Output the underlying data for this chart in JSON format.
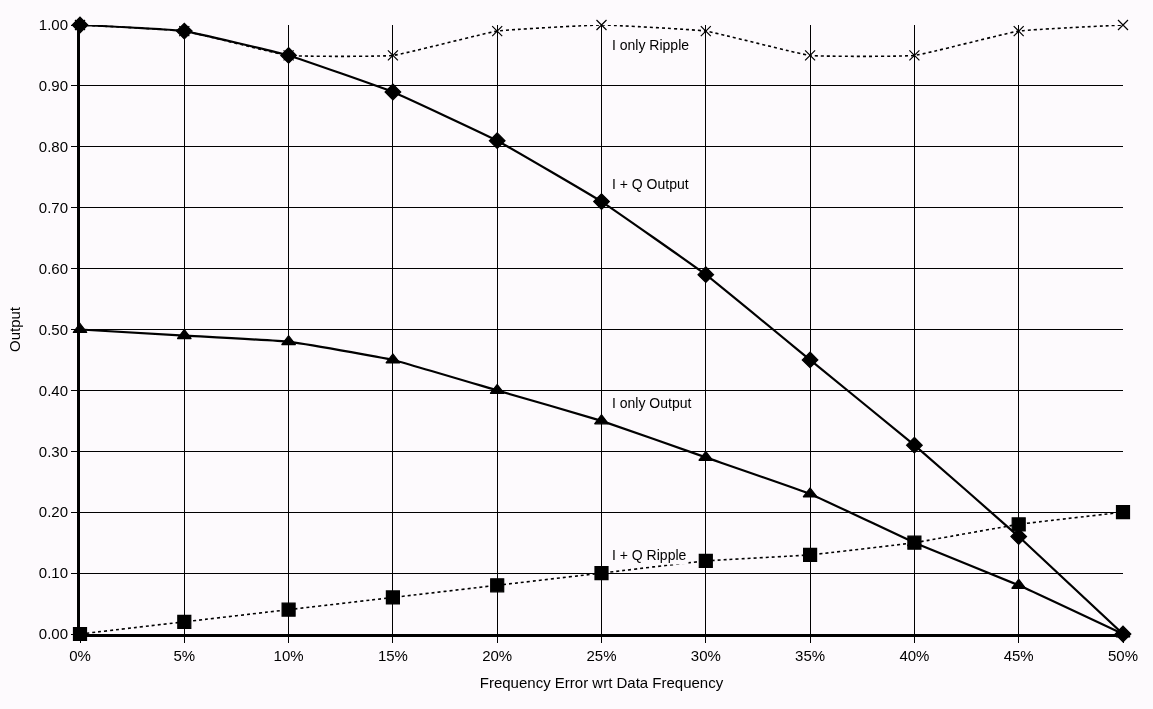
{
  "chart_data": {
    "type": "line",
    "xlabel": "Frequency Error wrt Data Frequency",
    "ylabel": "Output",
    "x": [
      0,
      5,
      10,
      15,
      20,
      25,
      30,
      35,
      40,
      45,
      50
    ],
    "xlim": [
      0,
      50
    ],
    "xticks": [
      {
        "value": 0,
        "label": "0%"
      },
      {
        "value": 5,
        "label": "5%"
      },
      {
        "value": 10,
        "label": "10%"
      },
      {
        "value": 15,
        "label": "15%"
      },
      {
        "value": 20,
        "label": "20%"
      },
      {
        "value": 25,
        "label": "25%"
      },
      {
        "value": 30,
        "label": "30%"
      },
      {
        "value": 35,
        "label": "35%"
      },
      {
        "value": 40,
        "label": "40%"
      },
      {
        "value": 45,
        "label": "45%"
      },
      {
        "value": 50,
        "label": "50%"
      }
    ],
    "ylim": [
      0,
      1
    ],
    "yticks": [
      {
        "value": 0,
        "label": "0.00"
      },
      {
        "value": 0.1,
        "label": "0.10"
      },
      {
        "value": 0.2,
        "label": "0.20"
      },
      {
        "value": 0.3,
        "label": "0.30"
      },
      {
        "value": 0.4,
        "label": "0.40"
      },
      {
        "value": 0.5,
        "label": "0.50"
      },
      {
        "value": 0.6,
        "label": "0.60"
      },
      {
        "value": 0.7,
        "label": "0.70"
      },
      {
        "value": 0.8,
        "label": "0.80"
      },
      {
        "value": 0.9,
        "label": "0.90"
      },
      {
        "value": 1,
        "label": "1.00"
      }
    ],
    "grid": true,
    "legend": false,
    "series": [
      {
        "name": "I only Ripple",
        "color": "#000000",
        "marker": "cross",
        "line_style": "dotted",
        "values": [
          1.0,
          0.99,
          0.95,
          0.95,
          0.99,
          1.0,
          0.99,
          0.95,
          0.95,
          0.99,
          1.0
        ]
      },
      {
        "name": "I + Q Ripple",
        "color": "#000000",
        "marker": "square",
        "line_style": "dotted",
        "values": [
          0.0,
          0.02,
          0.04,
          0.06,
          0.08,
          0.1,
          0.12,
          0.13,
          0.15,
          0.18,
          0.2
        ]
      },
      {
        "name": "I only Output",
        "color": "#000000",
        "marker": "triangle",
        "line_style": "solid",
        "values": [
          0.5,
          0.49,
          0.48,
          0.45,
          0.4,
          0.35,
          0.29,
          0.23,
          0.15,
          0.08,
          0.0
        ]
      },
      {
        "name": "I + Q Output",
        "color": "#000000",
        "marker": "diamond",
        "line_style": "solid",
        "values": [
          1.0,
          0.99,
          0.95,
          0.89,
          0.81,
          0.71,
          0.59,
          0.45,
          0.31,
          0.16,
          0.0
        ]
      }
    ]
  }
}
